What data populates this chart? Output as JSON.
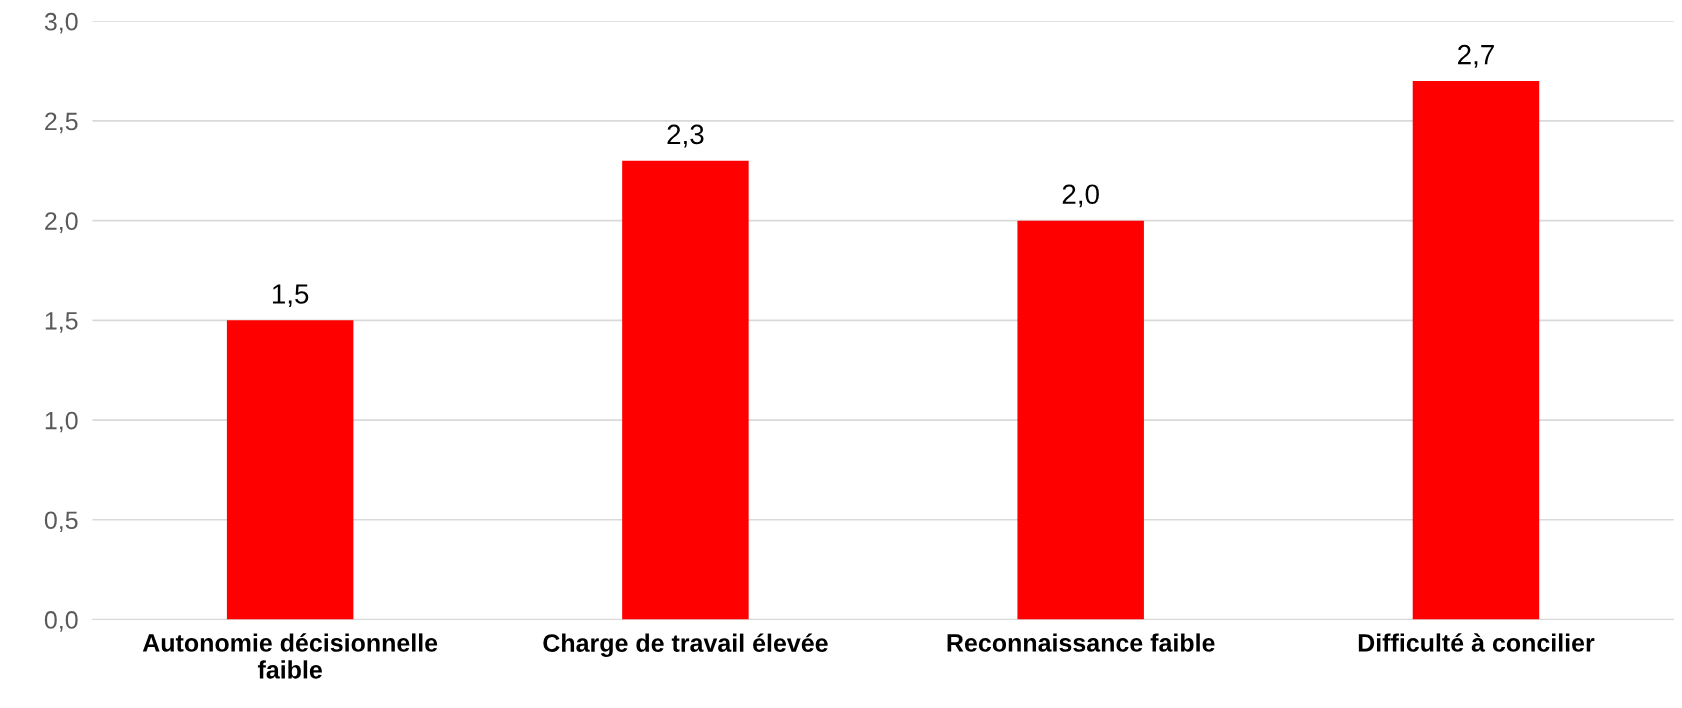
{
  "chart_data": {
    "type": "bar",
    "categories": [
      "Autonomie décisionnelle faible",
      "Charge de travail élevée",
      "Reconnaissance faible",
      "Difficulté à concilier"
    ],
    "values": [
      1.5,
      2.3,
      2.0,
      2.7
    ],
    "value_labels": [
      "1,5",
      "2,3",
      "2,0",
      "2,7"
    ],
    "color": "#ff0000",
    "ylim": [
      0,
      3
    ],
    "yticks": [
      {
        "value": 0,
        "label": "0,0"
      },
      {
        "value": 0.5,
        "label": "0,5"
      },
      {
        "value": 1,
        "label": "1,0"
      },
      {
        "value": 1.5,
        "label": "1,5"
      },
      {
        "value": 2,
        "label": "2,0"
      },
      {
        "value": 2.5,
        "label": "2,5"
      },
      {
        "value": 3,
        "label": "3,0"
      }
    ],
    "grid": "y"
  }
}
